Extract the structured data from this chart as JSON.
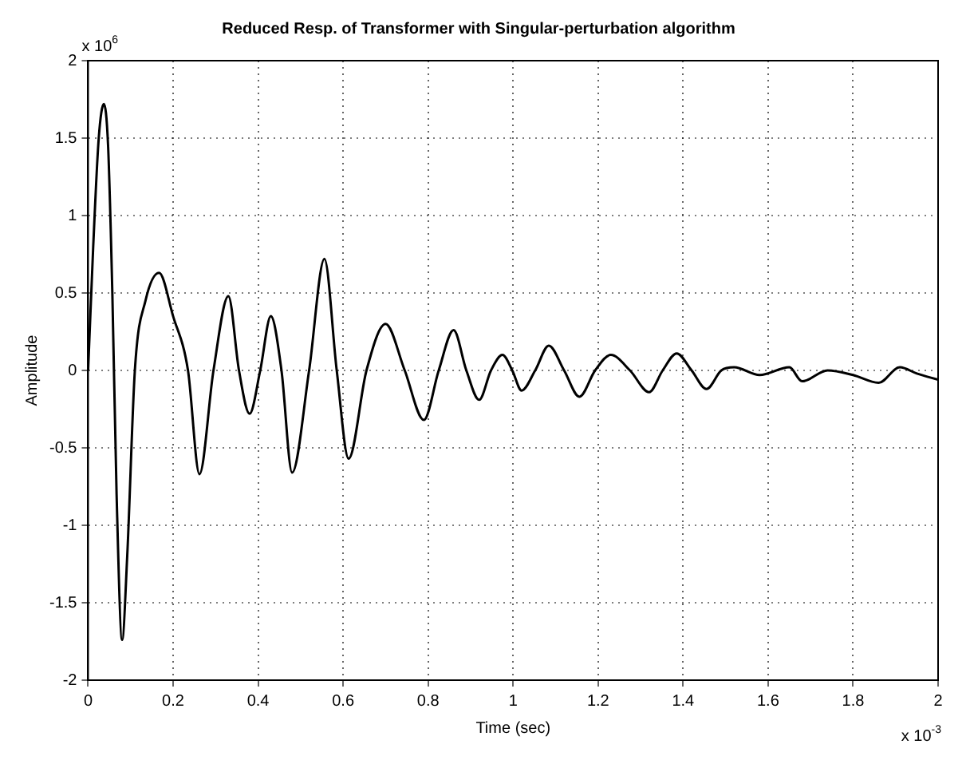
{
  "chart_data": {
    "type": "line",
    "title": "Reduced Resp. of Transformer with Singular-perturbation algorithm",
    "xlabel": "Time (sec)",
    "ylabel": "Amplitude",
    "annotations": [
      "x 10$^{6}$",
      "x 10$^{-3}$"
    ],
    "xlim": [
      0,
      2
    ],
    "xticks": [
      0,
      0.2,
      0.4,
      0.6,
      0.8,
      1,
      1.2,
      1.4,
      1.6,
      1.8,
      2
    ],
    "ylim": [
      -2,
      2
    ],
    "yticks": [
      -2,
      -1.5,
      -1,
      -0.5,
      0,
      0.5,
      1,
      1.5,
      2
    ],
    "grid": true,
    "series": [
      {
        "color": "#000000",
        "x": [
          0,
          0.012,
          0.025,
          0.037,
          0.047,
          0.057,
          0.067,
          0.08,
          0.092,
          0.11,
          0.135,
          0.167,
          0.2,
          0.235,
          0.262,
          0.295,
          0.33,
          0.355,
          0.38,
          0.405,
          0.43,
          0.455,
          0.48,
          0.52,
          0.556,
          0.585,
          0.613,
          0.655,
          0.7,
          0.745,
          0.79,
          0.825,
          0.86,
          0.89,
          0.92,
          0.948,
          0.975,
          0.998,
          1.02,
          1.052,
          1.084,
          1.12,
          1.156,
          1.193,
          1.23,
          1.275,
          1.32,
          1.352,
          1.385,
          1.42,
          1.455,
          1.49,
          1.52,
          1.58,
          1.65,
          1.68,
          1.74,
          1.8,
          1.86,
          1.91,
          1.95,
          2
        ],
        "values": [
          0,
          0.8,
          1.5,
          1.72,
          1.45,
          0.5,
          -0.8,
          -1.74,
          -1.2,
          0,
          0.45,
          0.63,
          0.35,
          0,
          -0.67,
          0,
          0.48,
          0,
          -0.28,
          0,
          0.35,
          0,
          -0.66,
          0,
          0.72,
          0,
          -0.57,
          0,
          0.3,
          0,
          -0.32,
          0,
          0.26,
          0,
          -0.19,
          0,
          0.1,
          0,
          -0.13,
          0,
          0.16,
          0,
          -0.17,
          0,
          0.1,
          0,
          -0.14,
          0,
          0.11,
          0,
          -0.12,
          0,
          0.02,
          -0.03,
          0.02,
          -0.07,
          0,
          -0.03,
          -0.08,
          0.02,
          -0.02,
          -0.06
        ]
      }
    ]
  }
}
